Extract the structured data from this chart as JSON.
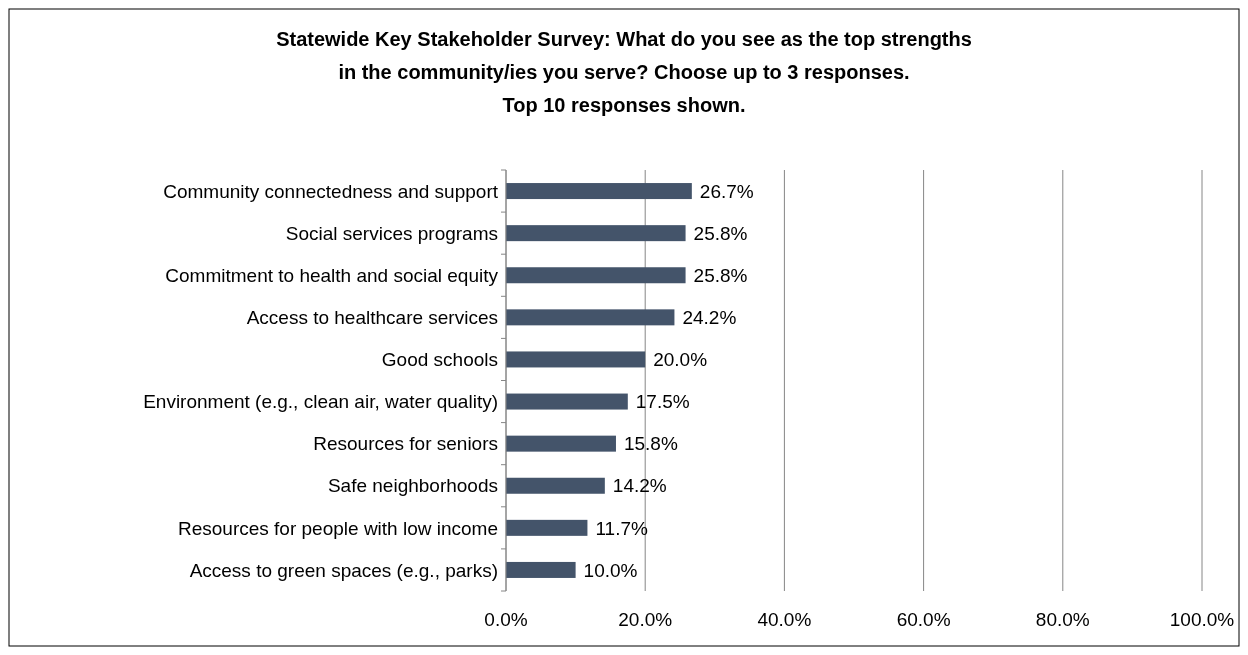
{
  "chart_data": {
    "type": "bar",
    "orientation": "horizontal",
    "title": "Statewide Key Stakeholder Survey: What do you see as the top strengths\nin the community/ies you serve? Choose up to 3 responses.\nTop 10 responses shown.",
    "categories": [
      "Community connectedness and support",
      "Social services programs",
      "Commitment to health and social equity",
      "Access to healthcare services",
      "Good schools",
      "Environment (e.g., clean air, water quality)",
      "Resources for seniors",
      "Safe neighborhoods",
      "Resources for people with low income",
      "Access to green spaces (e.g., parks)"
    ],
    "values": [
      26.7,
      25.8,
      25.8,
      24.2,
      20.0,
      17.5,
      15.8,
      14.2,
      11.7,
      10.0
    ],
    "value_labels": [
      "26.7%",
      "25.8%",
      "25.8%",
      "24.2%",
      "20.0%",
      "17.5%",
      "15.8%",
      "14.2%",
      "11.7%",
      "10.0%"
    ],
    "color": "#44546a",
    "xlim": [
      0,
      100
    ],
    "xticks": [
      {
        "value": 0,
        "label": "0.0%"
      },
      {
        "value": 20,
        "label": "20.0%"
      },
      {
        "value": 40,
        "label": "40.0%"
      },
      {
        "value": 60,
        "label": "60.0%"
      },
      {
        "value": 80,
        "label": "80.0%"
      },
      {
        "value": 100,
        "label": "100.0%"
      }
    ],
    "grid": "x"
  }
}
